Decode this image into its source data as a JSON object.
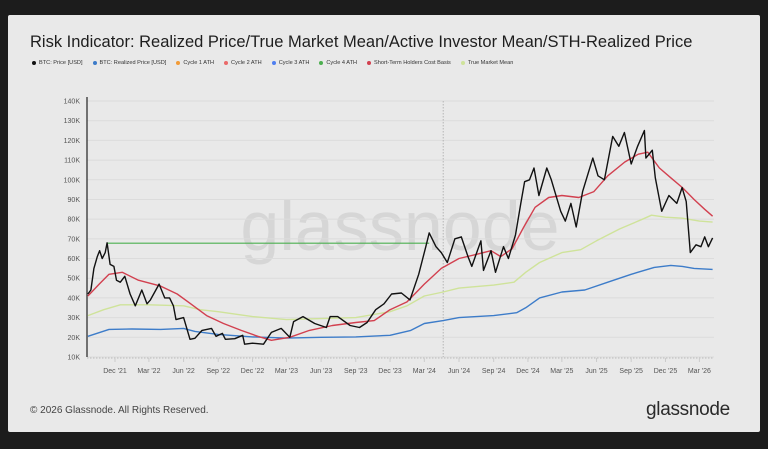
{
  "chart_data": {
    "type": "line",
    "title": "Risk Indicator: Realized Price/True Market Mean/Active Investor Mean/STH-Realized Price",
    "ylim": [
      10,
      140
    ],
    "y_unit": "K USD",
    "y_ticks": [
      "140K",
      "130K",
      "120K",
      "110K",
      "100K",
      "90K",
      "80K",
      "70K",
      "60K",
      "50K",
      "40K",
      "30K",
      "20K",
      "10K"
    ],
    "x_ticks": [
      {
        "label": "Dec '21",
        "date": "2021-12-01"
      },
      {
        "label": "Mar '22",
        "date": "2022-03-01"
      },
      {
        "label": "Jun '22",
        "date": "2022-06-01"
      },
      {
        "label": "Sep '22",
        "date": "2022-09-01"
      },
      {
        "label": "Dec '22",
        "date": "2022-12-01"
      },
      {
        "label": "Mar '23",
        "date": "2023-03-01"
      },
      {
        "label": "Jun '23",
        "date": "2023-06-01"
      },
      {
        "label": "Sep '23",
        "date": "2023-09-01"
      },
      {
        "label": "Dec '23",
        "date": "2023-12-01"
      },
      {
        "label": "Mar '24",
        "date": "2024-03-01"
      },
      {
        "label": "Jun '24",
        "date": "2024-06-01"
      },
      {
        "label": "Sep '24",
        "date": "2024-09-01"
      },
      {
        "label": "Dec '24",
        "date": "2024-12-01"
      },
      {
        "label": "Mar '25",
        "date": "2025-03-01"
      },
      {
        "label": "Jun '25",
        "date": "2025-06-01"
      },
      {
        "label": "Sep '25",
        "date": "2025-09-01"
      },
      {
        "label": "Dec '25",
        "date": "2025-12-01"
      },
      {
        "label": "Mar '26",
        "date": "2026-03-01"
      }
    ],
    "marker_line_date": "2024-04-20",
    "legend": [
      {
        "name": "BTC: Price [USD]",
        "color": "#111111"
      },
      {
        "name": "BTC: Realized Price [USD]",
        "color": "#3d7cc9"
      },
      {
        "name": "Cycle 1 ATH",
        "color": "#f29b38"
      },
      {
        "name": "Cycle 2 ATH",
        "color": "#ea6a6a"
      },
      {
        "name": "Cycle 3 ATH",
        "color": "#4f7ff0"
      },
      {
        "name": "Cycle 4 ATH",
        "color": "#4caf50"
      },
      {
        "name": "Short-Term Holders Cost Basis",
        "color": "#d2404f"
      },
      {
        "name": "True Market Mean",
        "color": "#cfe39a"
      }
    ],
    "series": [
      {
        "name": "True Market Mean",
        "color": "#cfe39a",
        "width": 1.4,
        "points": [
          [
            "2021-09-20",
            31
          ],
          [
            "2021-11-01",
            34
          ],
          [
            "2021-12-15",
            36.5
          ],
          [
            "2022-03-01",
            36.5
          ],
          [
            "2022-06-01",
            36
          ],
          [
            "2022-07-15",
            34
          ],
          [
            "2022-09-01",
            33
          ],
          [
            "2022-12-01",
            30.5
          ],
          [
            "2023-03-01",
            29
          ],
          [
            "2023-06-01",
            29.5
          ],
          [
            "2023-09-01",
            30
          ],
          [
            "2023-12-01",
            33
          ],
          [
            "2024-01-15",
            36
          ],
          [
            "2024-03-01",
            41
          ],
          [
            "2024-04-20",
            43
          ],
          [
            "2024-06-01",
            45
          ],
          [
            "2024-09-01",
            46.5
          ],
          [
            "2024-10-25",
            48
          ],
          [
            "2024-11-25",
            53
          ],
          [
            "2025-01-01",
            58
          ],
          [
            "2025-03-01",
            63
          ],
          [
            "2025-04-20",
            64.5
          ],
          [
            "2025-06-01",
            69
          ],
          [
            "2025-08-01",
            75
          ],
          [
            "2025-10-01",
            80
          ],
          [
            "2025-10-25",
            82
          ],
          [
            "2025-12-01",
            81
          ],
          [
            "2026-01-15",
            80.5
          ],
          [
            "2026-03-01",
            79
          ],
          [
            "2026-04-05",
            78.5
          ]
        ]
      },
      {
        "name": "BTC: Realized Price [USD]",
        "color": "#3d7cc9",
        "width": 1.4,
        "points": [
          [
            "2021-09-20",
            20.5
          ],
          [
            "2021-11-15",
            24
          ],
          [
            "2022-01-15",
            24.2
          ],
          [
            "2022-04-01",
            24
          ],
          [
            "2022-06-01",
            24.5
          ],
          [
            "2022-07-01",
            23
          ],
          [
            "2022-09-01",
            21.5
          ],
          [
            "2022-12-01",
            20.2
          ],
          [
            "2023-03-01",
            19.6
          ],
          [
            "2023-06-01",
            20
          ],
          [
            "2023-09-01",
            20.2
          ],
          [
            "2023-12-01",
            21
          ],
          [
            "2024-01-25",
            23.5
          ],
          [
            "2024-03-01",
            27
          ],
          [
            "2024-04-20",
            28.5
          ],
          [
            "2024-06-01",
            30
          ],
          [
            "2024-09-01",
            31
          ],
          [
            "2024-11-01",
            32.5
          ],
          [
            "2024-11-25",
            35
          ],
          [
            "2025-01-01",
            40
          ],
          [
            "2025-03-01",
            43
          ],
          [
            "2025-05-01",
            44
          ],
          [
            "2025-07-01",
            48
          ],
          [
            "2025-09-01",
            52
          ],
          [
            "2025-11-01",
            55.5
          ],
          [
            "2025-12-15",
            56.5
          ],
          [
            "2026-01-15",
            56
          ],
          [
            "2026-02-15",
            55
          ],
          [
            "2026-04-05",
            54.5
          ]
        ]
      },
      {
        "name": "Cycle 4 ATH",
        "color": "#4caf50",
        "width": 1.2,
        "points": [
          [
            "2021-11-10",
            67.8
          ],
          [
            "2024-03-14",
            67.8
          ]
        ]
      },
      {
        "name": "Short-Term Holders Cost Basis",
        "color": "#d2404f",
        "width": 1.4,
        "points": [
          [
            "2021-09-20",
            41
          ],
          [
            "2021-10-20",
            47
          ],
          [
            "2021-11-15",
            52
          ],
          [
            "2021-12-20",
            53
          ],
          [
            "2022-02-01",
            49
          ],
          [
            "2022-04-01",
            46
          ],
          [
            "2022-05-15",
            42
          ],
          [
            "2022-06-20",
            37
          ],
          [
            "2022-08-01",
            31
          ],
          [
            "2022-09-15",
            27
          ],
          [
            "2022-11-01",
            23.5
          ],
          [
            "2022-12-15",
            20.5
          ],
          [
            "2023-01-20",
            18.5
          ],
          [
            "2023-03-10",
            20
          ],
          [
            "2023-05-01",
            23.5
          ],
          [
            "2023-07-01",
            26
          ],
          [
            "2023-09-01",
            27.5
          ],
          [
            "2023-10-20",
            28.5
          ],
          [
            "2023-12-01",
            34
          ],
          [
            "2024-01-15",
            38
          ],
          [
            "2024-03-01",
            47
          ],
          [
            "2024-04-15",
            55
          ],
          [
            "2024-06-01",
            60
          ],
          [
            "2024-07-15",
            62
          ],
          [
            "2024-08-25",
            64
          ],
          [
            "2024-09-20",
            61
          ],
          [
            "2024-10-20",
            65
          ],
          [
            "2024-11-20",
            76
          ],
          [
            "2024-12-20",
            86
          ],
          [
            "2025-01-25",
            91
          ],
          [
            "2025-03-01",
            92
          ],
          [
            "2025-04-15",
            91
          ],
          [
            "2025-05-25",
            94
          ],
          [
            "2025-07-01",
            102
          ],
          [
            "2025-08-15",
            109
          ],
          [
            "2025-09-20",
            113
          ],
          [
            "2025-10-15",
            114
          ],
          [
            "2025-11-15",
            106
          ],
          [
            "2025-12-15",
            101
          ],
          [
            "2026-01-15",
            96
          ],
          [
            "2026-02-15",
            90
          ],
          [
            "2026-03-15",
            85
          ],
          [
            "2026-04-05",
            81.5
          ]
        ]
      },
      {
        "name": "BTC: Price [USD]",
        "color": "#111111",
        "width": 1.4,
        "points": [
          [
            "2021-09-20",
            42
          ],
          [
            "2021-09-28",
            44
          ],
          [
            "2021-10-06",
            55
          ],
          [
            "2021-10-15",
            61
          ],
          [
            "2021-10-21",
            64
          ],
          [
            "2021-10-28",
            60
          ],
          [
            "2021-11-05",
            63
          ],
          [
            "2021-11-10",
            68
          ],
          [
            "2021-11-18",
            57
          ],
          [
            "2021-11-28",
            56
          ],
          [
            "2021-12-05",
            49
          ],
          [
            "2021-12-15",
            48
          ],
          [
            "2021-12-27",
            51
          ],
          [
            "2022-01-10",
            42
          ],
          [
            "2022-01-24",
            36
          ],
          [
            "2022-02-10",
            44
          ],
          [
            "2022-02-24",
            37
          ],
          [
            "2022-03-05",
            39
          ],
          [
            "2022-03-28",
            47
          ],
          [
            "2022-04-12",
            40
          ],
          [
            "2022-04-25",
            40
          ],
          [
            "2022-05-05",
            36
          ],
          [
            "2022-05-12",
            29
          ],
          [
            "2022-06-01",
            30
          ],
          [
            "2022-06-18",
            19
          ],
          [
            "2022-07-01",
            19.5
          ],
          [
            "2022-07-20",
            23.5
          ],
          [
            "2022-08-14",
            24.5
          ],
          [
            "2022-08-26",
            20.5
          ],
          [
            "2022-09-12",
            22
          ],
          [
            "2022-09-20",
            19
          ],
          [
            "2022-10-15",
            19.3
          ],
          [
            "2022-11-05",
            21
          ],
          [
            "2022-11-10",
            16.5
          ],
          [
            "2022-12-01",
            17
          ],
          [
            "2022-12-30",
            16.5
          ],
          [
            "2023-01-20",
            22.5
          ],
          [
            "2023-02-15",
            24.5
          ],
          [
            "2023-03-10",
            20
          ],
          [
            "2023-03-20",
            28
          ],
          [
            "2023-04-14",
            30.5
          ],
          [
            "2023-05-15",
            27
          ],
          [
            "2023-06-15",
            25
          ],
          [
            "2023-06-25",
            30.5
          ],
          [
            "2023-07-15",
            30.5
          ],
          [
            "2023-08-17",
            26
          ],
          [
            "2023-09-11",
            25
          ],
          [
            "2023-10-01",
            27.5
          ],
          [
            "2023-10-24",
            34
          ],
          [
            "2023-11-15",
            37
          ],
          [
            "2023-12-05",
            42
          ],
          [
            "2023-12-31",
            42.5
          ],
          [
            "2024-01-23",
            39
          ],
          [
            "2024-02-15",
            52
          ],
          [
            "2024-03-05",
            66
          ],
          [
            "2024-03-14",
            73
          ],
          [
            "2024-04-01",
            66
          ],
          [
            "2024-04-15",
            63
          ],
          [
            "2024-05-01",
            58
          ],
          [
            "2024-05-21",
            70
          ],
          [
            "2024-06-07",
            71
          ],
          [
            "2024-06-25",
            61
          ],
          [
            "2024-07-05",
            56
          ],
          [
            "2024-07-29",
            69
          ],
          [
            "2024-08-05",
            54
          ],
          [
            "2024-08-25",
            64
          ],
          [
            "2024-09-06",
            53
          ],
          [
            "2024-09-27",
            66
          ],
          [
            "2024-10-10",
            60
          ],
          [
            "2024-10-29",
            72
          ],
          [
            "2024-11-12",
            88
          ],
          [
            "2024-11-22",
            99
          ],
          [
            "2024-12-05",
            100
          ],
          [
            "2024-12-17",
            106
          ],
          [
            "2024-12-30",
            92
          ],
          [
            "2025-01-20",
            106
          ],
          [
            "2025-02-01",
            100
          ],
          [
            "2025-02-26",
            84
          ],
          [
            "2025-03-10",
            79
          ],
          [
            "2025-03-25",
            88
          ],
          [
            "2025-04-08",
            76
          ],
          [
            "2025-04-25",
            94
          ],
          [
            "2025-05-22",
            111
          ],
          [
            "2025-06-05",
            102
          ],
          [
            "2025-06-22",
            100
          ],
          [
            "2025-07-14",
            122
          ],
          [
            "2025-07-30",
            117
          ],
          [
            "2025-08-14",
            124
          ],
          [
            "2025-09-01",
            108
          ],
          [
            "2025-09-18",
            117
          ],
          [
            "2025-10-06",
            125
          ],
          [
            "2025-10-10",
            111
          ],
          [
            "2025-10-27",
            115
          ],
          [
            "2025-11-04",
            101
          ],
          [
            "2025-11-21",
            84
          ],
          [
            "2025-12-10",
            92
          ],
          [
            "2025-12-31",
            88
          ],
          [
            "2026-01-14",
            96
          ],
          [
            "2026-01-25",
            89
          ],
          [
            "2026-02-05",
            63
          ],
          [
            "2026-02-20",
            67
          ],
          [
            "2026-03-05",
            66
          ],
          [
            "2026-03-15",
            71
          ],
          [
            "2026-03-25",
            66
          ],
          [
            "2026-04-05",
            70.5
          ]
        ]
      }
    ]
  },
  "watermark": "glassnode",
  "footer": {
    "copyright": "© 2026 Glassnode. All Rights Reserved.",
    "logo": "glassnode"
  }
}
